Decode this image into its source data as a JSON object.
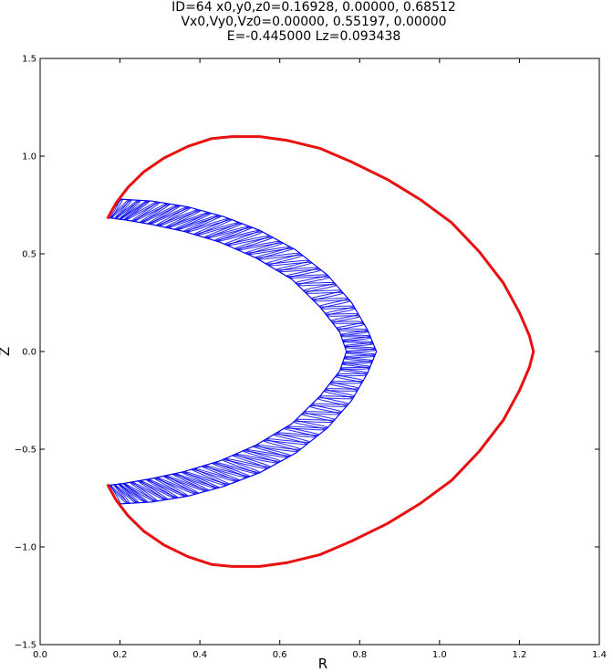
{
  "chart_data": {
    "type": "line",
    "title_lines": [
      "ID=64      x0,y0,z0=0.16928, 0.00000, 0.68512",
      "Vx0,Vy0,Vz0=0.00000, 0.55197, 0.00000",
      "E=-0.445000    Lz=0.093438"
    ],
    "xlabel": "R",
    "ylabel": "Z",
    "xlim": [
      0.0,
      1.4
    ],
    "ylim": [
      -1.5,
      1.5
    ],
    "xticks": [
      "0.0",
      "0.2",
      "0.4",
      "0.6",
      "0.8",
      "1.0",
      "1.2",
      "1.4"
    ],
    "yticks": [
      "1.5",
      "1.0",
      "0.5",
      "0.0",
      "−0.5",
      "−1.0",
      "−1.5"
    ],
    "grid": false,
    "colors": {
      "boundary": "#e81010",
      "orbit": "#0000ee"
    },
    "series": [
      {
        "style": "zero-velocity curve",
        "color": "#e81010",
        "x": [
          0.17,
          0.19,
          0.22,
          0.26,
          0.31,
          0.37,
          0.43,
          0.48,
          0.55,
          0.62,
          0.7,
          0.78,
          0.87,
          0.95,
          1.03,
          1.1,
          1.16,
          1.2,
          1.225,
          1.235,
          1.225,
          1.2,
          1.16,
          1.1,
          1.03,
          0.95,
          0.87,
          0.78,
          0.7,
          0.62,
          0.55,
          0.48,
          0.43,
          0.37,
          0.31,
          0.26,
          0.22,
          0.19,
          0.17
        ],
        "y": [
          0.685,
          0.76,
          0.84,
          0.92,
          0.99,
          1.05,
          1.09,
          1.1,
          1.1,
          1.08,
          1.04,
          0.97,
          0.88,
          0.78,
          0.66,
          0.51,
          0.35,
          0.2,
          0.08,
          0.0,
          -0.08,
          -0.2,
          -0.35,
          -0.51,
          -0.66,
          -0.78,
          -0.88,
          -0.97,
          -1.04,
          -1.08,
          -1.1,
          -1.1,
          -1.09,
          -1.05,
          -0.99,
          -0.92,
          -0.84,
          -0.76,
          -0.685
        ]
      },
      {
        "style": "orbit envelope (inner)",
        "color": "#0000ee",
        "x": [
          0.17,
          0.21,
          0.28,
          0.36,
          0.45,
          0.54,
          0.63,
          0.7,
          0.75,
          0.767,
          0.75,
          0.7,
          0.63,
          0.54,
          0.45,
          0.36,
          0.28,
          0.21,
          0.17
        ],
        "y": [
          0.685,
          0.675,
          0.65,
          0.615,
          0.56,
          0.48,
          0.37,
          0.23,
          0.1,
          0.0,
          -0.1,
          -0.23,
          -0.37,
          -0.48,
          -0.56,
          -0.615,
          -0.65,
          -0.675,
          -0.685
        ]
      },
      {
        "style": "orbit envelope (outer)",
        "color": "#0000ee",
        "x": [
          0.2,
          0.28,
          0.37,
          0.46,
          0.55,
          0.64,
          0.72,
          0.78,
          0.82,
          0.842,
          0.82,
          0.78,
          0.72,
          0.64,
          0.55,
          0.46,
          0.37,
          0.28,
          0.2
        ],
        "y": [
          0.78,
          0.77,
          0.74,
          0.69,
          0.62,
          0.52,
          0.39,
          0.25,
          0.11,
          0.0,
          -0.11,
          -0.25,
          -0.39,
          -0.52,
          -0.62,
          -0.69,
          -0.74,
          -0.77,
          -0.78
        ]
      }
    ]
  }
}
